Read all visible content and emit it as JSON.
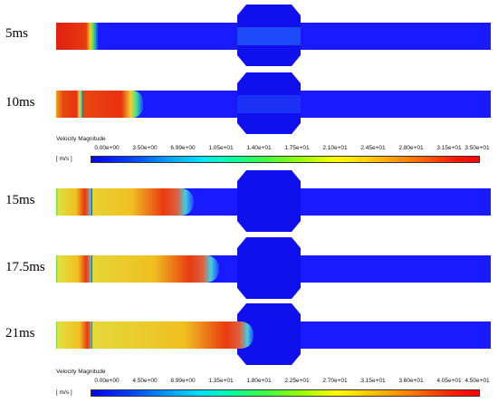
{
  "panels": [
    {
      "time": "5ms",
      "jet_fraction": 0.1
    },
    {
      "time": "10ms",
      "jet_fraction": 0.2
    },
    {
      "time": "15ms",
      "jet_fraction": 0.32
    },
    {
      "time": "17.5ms",
      "jet_fraction": 0.38
    },
    {
      "time": "21ms",
      "jet_fraction": 0.47
    }
  ],
  "legends": [
    {
      "title": "Velocity Magnitude",
      "unit": "[ m/s ]",
      "ticks": [
        "0.00e+00",
        "3.50e+00",
        "6.99e+00",
        "1.05e+01",
        "1.40e+01",
        "1.75e+01",
        "2.10e+01",
        "2.45e+01",
        "2.80e+01",
        "3.15e+01",
        "3.50e+01"
      ]
    },
    {
      "title": "Velocity Magnitude",
      "unit": "[ m/s ]",
      "ticks": [
        "0.00e+00",
        "4.50e+00",
        "8.99e+00",
        "1.35e+01",
        "1.80e+01",
        "2.25e+01",
        "2.70e+01",
        "3.15e+01",
        "3.60e+01",
        "4.05e+01",
        "4.50e+01"
      ]
    }
  ],
  "colors": {
    "background_flow": "#1a1aff",
    "chamber": "#1010ee",
    "jet_core_red": "#e0201a",
    "jet_yellow": "#f0e030",
    "jet_green": "#30d060"
  }
}
